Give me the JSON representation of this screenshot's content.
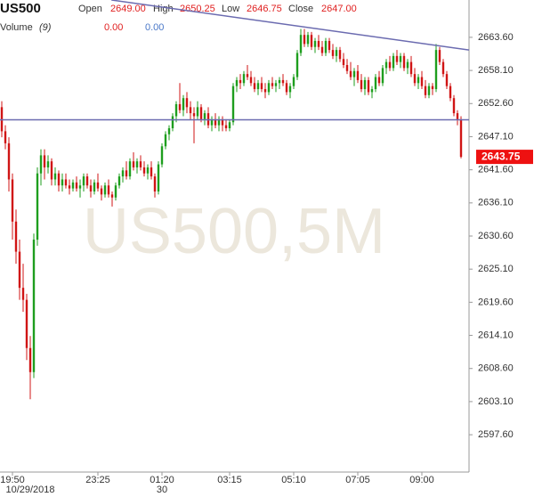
{
  "header": {
    "symbol": "US500",
    "fields": [
      {
        "label": "Open",
        "value": "2649.00"
      },
      {
        "label": "High",
        "value": "2650.25"
      },
      {
        "label": "Low",
        "value": "2646.75"
      },
      {
        "label": "Close",
        "value": "2647.00"
      }
    ],
    "volume_label": "Volume",
    "volume_period": "(9)",
    "volume_values": [
      "0.00",
      "0.00"
    ]
  },
  "chart_data": {
    "type": "candlestick",
    "watermark": "US500,5M",
    "up_color": "#1e9e1e",
    "down_color": "#d01515",
    "xlim": [
      -0.5,
      131.25
    ],
    "ylim": [
      2591.4,
      2669.8
    ],
    "yticks": [
      {
        "value": 2663.6,
        "label": "2663.60"
      },
      {
        "value": 2658.1,
        "label": "2658.10"
      },
      {
        "value": 2652.6,
        "label": "2652.60"
      },
      {
        "value": 2647.1,
        "label": "2647.10"
      },
      {
        "value": 2641.6,
        "label": "2641.60"
      },
      {
        "value": 2636.1,
        "label": "2636.10"
      },
      {
        "value": 2630.6,
        "label": "2630.60"
      },
      {
        "value": 2625.1,
        "label": "2625.10"
      },
      {
        "value": 2619.6,
        "label": "2619.60"
      },
      {
        "value": 2614.1,
        "label": "2614.10"
      },
      {
        "value": 2608.6,
        "label": "2608.60"
      },
      {
        "value": 2603.1,
        "label": "2603.10"
      },
      {
        "value": 2597.6,
        "label": "2597.60"
      }
    ],
    "xticks": [
      {
        "value": 3,
        "label": "19:50"
      },
      {
        "value": 27,
        "label": "23:25"
      },
      {
        "value": 45,
        "label": "01:20"
      },
      {
        "value": 64,
        "label": "03:15"
      },
      {
        "value": 82,
        "label": "05:10"
      },
      {
        "value": 100,
        "label": "07:05"
      },
      {
        "value": 118,
        "label": "09:00"
      }
    ],
    "date_ticks": [
      {
        "value": 3,
        "label": "10/29/2018"
      },
      {
        "value": 45,
        "label": "30"
      }
    ],
    "last_price": 2643.75,
    "last_price_color": "#ee1111",
    "lines": [
      {
        "x": [
          -0.5,
          131.25
        ],
        "y": [
          2649.9,
          2649.9
        ],
        "color": "#6b6bb0"
      },
      {
        "x": [
          30.8,
          131.25
        ],
        "y": [
          2669.8,
          2661.5
        ],
        "color": "#6b6bb0"
      }
    ],
    "ohlc": [
      [
        2652,
        2653,
        2647,
        2648
      ],
      [
        2648,
        2649,
        2645,
        2646
      ],
      [
        2646,
        2647,
        2638,
        2640
      ],
      [
        2640,
        2641,
        2630,
        2633
      ],
      [
        2633,
        2635,
        2626,
        2628
      ],
      [
        2628,
        2630,
        2620,
        2622
      ],
      [
        2622,
        2626,
        2618,
        2620
      ],
      [
        2620,
        2621,
        2610,
        2612
      ],
      [
        2612,
        2614,
        2603.5,
        2608
      ],
      [
        2608,
        2631,
        2607,
        2630
      ],
      [
        2630,
        2642,
        2629,
        2641
      ],
      [
        2641,
        2645,
        2639,
        2644
      ],
      [
        2644,
        2645,
        2640,
        2642
      ],
      [
        2642,
        2644,
        2641,
        2643
      ],
      [
        2643,
        2643.5,
        2639,
        2640
      ],
      [
        2640,
        2642,
        2639,
        2641
      ],
      [
        2641,
        2641.5,
        2638,
        2639
      ],
      [
        2639,
        2641,
        2638,
        2640
      ],
      [
        2640,
        2641,
        2638.5,
        2639
      ],
      [
        2639,
        2640,
        2637.5,
        2638.5
      ],
      [
        2638.5,
        2640,
        2638,
        2639.5
      ],
      [
        2639.5,
        2640.5,
        2638,
        2638.5
      ],
      [
        2638.5,
        2640,
        2637,
        2639
      ],
      [
        2639,
        2641,
        2638,
        2640.5
      ],
      [
        2640.5,
        2641,
        2638.5,
        2639
      ],
      [
        2639,
        2640,
        2637,
        2638
      ],
      [
        2638,
        2640,
        2637.5,
        2639.5
      ],
      [
        2639.5,
        2641,
        2638,
        2638.5
      ],
      [
        2638.5,
        2639,
        2636.5,
        2637.5
      ],
      [
        2637.5,
        2639.5,
        2637,
        2639
      ],
      [
        2639,
        2640,
        2637,
        2637.5
      ],
      [
        2637.5,
        2638,
        2635.5,
        2637
      ],
      [
        2637,
        2639.5,
        2636.5,
        2639
      ],
      [
        2639,
        2641,
        2638.5,
        2640.5
      ],
      [
        2640.5,
        2642,
        2639.5,
        2641.5
      ],
      [
        2641.5,
        2643,
        2640,
        2640.5
      ],
      [
        2640.5,
        2643.5,
        2640,
        2643
      ],
      [
        2643,
        2644.5,
        2641.5,
        2642
      ],
      [
        2642,
        2643.5,
        2641,
        2643
      ],
      [
        2643,
        2644,
        2641.5,
        2642
      ],
      [
        2642,
        2643,
        2640.5,
        2641
      ],
      [
        2641,
        2642.5,
        2640,
        2642
      ],
      [
        2642,
        2643,
        2640,
        2640.5
      ],
      [
        2640.5,
        2641,
        2637,
        2638
      ],
      [
        2638,
        2643,
        2637.5,
        2642.5
      ],
      [
        2642.5,
        2646,
        2642,
        2645.5
      ],
      [
        2645.5,
        2648,
        2645,
        2647.5
      ],
      [
        2647.5,
        2649,
        2646.5,
        2648.5
      ],
      [
        2648.5,
        2651,
        2648,
        2650.5
      ],
      [
        2650.5,
        2653,
        2649.5,
        2652.5
      ],
      [
        2652.5,
        2656,
        2651,
        2651.5
      ],
      [
        2651.5,
        2654,
        2650.5,
        2653.5
      ],
      [
        2653.5,
        2654.5,
        2651,
        2652
      ],
      [
        2652,
        2653,
        2650,
        2651
      ],
      [
        2651,
        2652,
        2646,
        2650.5
      ],
      [
        2650.5,
        2653,
        2650,
        2652
      ],
      [
        2652,
        2652.5,
        2649.5,
        2650
      ],
      [
        2650,
        2651.5,
        2649,
        2651
      ],
      [
        2651,
        2652,
        2648.5,
        2649
      ],
      [
        2649,
        2650.5,
        2648,
        2650
      ],
      [
        2650,
        2651,
        2648.5,
        2649
      ],
      [
        2649,
        2650.5,
        2648,
        2650
      ],
      [
        2650,
        2650.5,
        2648,
        2649
      ],
      [
        2649,
        2650,
        2648,
        2648.5
      ],
      [
        2648.5,
        2650,
        2648,
        2649.5
      ],
      [
        2649.5,
        2656,
        2649,
        2655.5
      ],
      [
        2655.5,
        2657,
        2654.5,
        2656.5
      ],
      [
        2656.5,
        2657.5,
        2655,
        2656
      ],
      [
        2656,
        2658,
        2655.5,
        2657.5
      ],
      [
        2657.5,
        2659,
        2656.5,
        2657
      ],
      [
        2657,
        2658,
        2655.5,
        2656
      ],
      [
        2656,
        2657,
        2654.5,
        2655
      ],
      [
        2655,
        2656.5,
        2654,
        2656
      ],
      [
        2656,
        2657,
        2654.5,
        2655
      ],
      [
        2655,
        2656,
        2653.5,
        2654.5
      ],
      [
        2654.5,
        2656.5,
        2654,
        2656
      ],
      [
        2656,
        2657,
        2655,
        2655.5
      ],
      [
        2655.5,
        2656.5,
        2654.5,
        2656
      ],
      [
        2656,
        2657,
        2655,
        2656.5
      ],
      [
        2656.5,
        2657.5,
        2655.5,
        2656
      ],
      [
        2656,
        2656.5,
        2654,
        2654.5
      ],
      [
        2654.5,
        2656,
        2653.5,
        2655.5
      ],
      [
        2655.5,
        2657.5,
        2655,
        2657
      ],
      [
        2657,
        2661.5,
        2656.5,
        2661
      ],
      [
        2661,
        2665,
        2660.5,
        2664
      ],
      [
        2664,
        2665,
        2662,
        2662.5
      ],
      [
        2662.5,
        2664.5,
        2662,
        2664
      ],
      [
        2664,
        2664.5,
        2661.5,
        2662
      ],
      [
        2662,
        2663.5,
        2661,
        2663
      ],
      [
        2663,
        2664,
        2661.5,
        2662
      ],
      [
        2662,
        2663,
        2660.5,
        2661
      ],
      [
        2661,
        2663.5,
        2660.5,
        2663
      ],
      [
        2663,
        2663.5,
        2661,
        2661.5
      ],
      [
        2661.5,
        2662.5,
        2660,
        2660.5
      ],
      [
        2660.5,
        2662,
        2659.5,
        2661.5
      ],
      [
        2661.5,
        2662,
        2659.5,
        2660
      ],
      [
        2660,
        2661,
        2658.5,
        2659
      ],
      [
        2659,
        2660,
        2657.5,
        2658
      ],
      [
        2658,
        2659.5,
        2656.5,
        2657
      ],
      [
        2657,
        2658.5,
        2655.5,
        2658
      ],
      [
        2658,
        2659,
        2656,
        2656.5
      ],
      [
        2656.5,
        2657.5,
        2654.5,
        2655
      ],
      [
        2655,
        2657,
        2654,
        2656.5
      ],
      [
        2656.5,
        2657,
        2654,
        2654.5
      ],
      [
        2654.5,
        2655.5,
        2653.5,
        2655
      ],
      [
        2655,
        2657.5,
        2654.5,
        2657
      ],
      [
        2657,
        2658,
        2655.5,
        2656
      ],
      [
        2656,
        2659,
        2655.5,
        2658.5
      ],
      [
        2658.5,
        2660,
        2657.5,
        2659.5
      ],
      [
        2659.5,
        2660.5,
        2658,
        2658.5
      ],
      [
        2658.5,
        2661,
        2658,
        2660.5
      ],
      [
        2660.5,
        2661.5,
        2659,
        2659.5
      ],
      [
        2659.5,
        2661,
        2658.5,
        2660.5
      ],
      [
        2660.5,
        2661,
        2658,
        2658.5
      ],
      [
        2658.5,
        2660,
        2657.5,
        2659.5
      ],
      [
        2659.5,
        2660.5,
        2657,
        2657.5
      ],
      [
        2657.5,
        2658.5,
        2655.5,
        2656
      ],
      [
        2656,
        2657.5,
        2655,
        2657
      ],
      [
        2657,
        2658,
        2655,
        2655.5
      ],
      [
        2655.5,
        2656.5,
        2653.5,
        2654
      ],
      [
        2654,
        2656,
        2653.5,
        2655.5
      ],
      [
        2655.5,
        2656,
        2654,
        2655
      ],
      [
        2655,
        2662.5,
        2654.5,
        2661.5
      ],
      [
        2661.5,
        2662,
        2659,
        2659.5
      ],
      [
        2659.5,
        2660,
        2657,
        2657.5
      ],
      [
        2657.5,
        2658,
        2655,
        2655.5
      ],
      [
        2655.5,
        2656,
        2653,
        2653.5
      ],
      [
        2653.5,
        2654,
        2650.5,
        2651
      ],
      [
        2651,
        2651.5,
        2649,
        2650
      ],
      [
        2650,
        2650.5,
        2643.5,
        2643.75
      ]
    ]
  }
}
